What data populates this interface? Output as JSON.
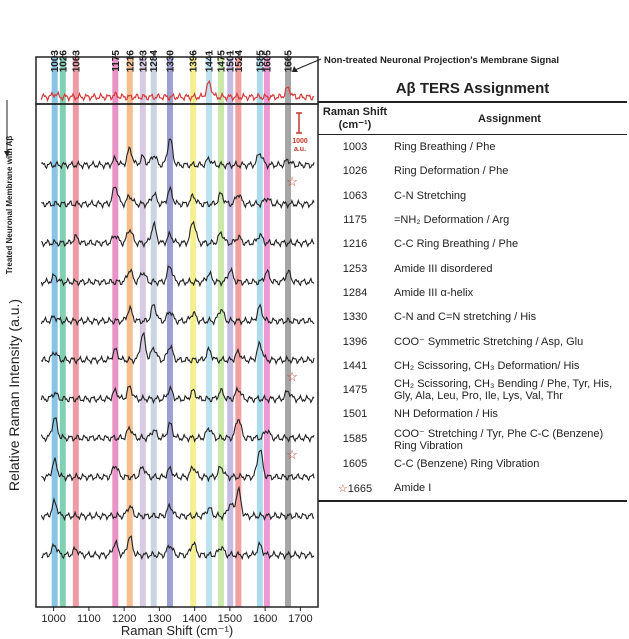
{
  "chart_data": {
    "type": "line",
    "xlabel": "Raman Shift (cm⁻¹)",
    "ylabel": "Relative Raman Intensity (a.u.)",
    "xlim": [
      950,
      1750
    ],
    "x_ticks": [
      "1000",
      "1100",
      "1200",
      "1300",
      "1400",
      "1500",
      "1600",
      "1700"
    ],
    "top_labels": [
      "1003",
      "1026",
      "1063",
      "1175",
      "1216",
      "1253",
      "1284",
      "1330",
      "1396",
      "1441",
      "1475",
      "1501",
      "1524",
      "1585",
      "1605",
      "1665"
    ],
    "bands": [
      {
        "x": 1003,
        "color": "#5fb0dd"
      },
      {
        "x": 1026,
        "color": "#58c09a"
      },
      {
        "x": 1063,
        "color": "#e97a88"
      },
      {
        "x": 1175,
        "color": "#e36fb3"
      },
      {
        "x": 1216,
        "color": "#f2a96a"
      },
      {
        "x": 1253,
        "color": "#c9b8d8"
      },
      {
        "x": 1284,
        "color": "#b7c7d8"
      },
      {
        "x": 1330,
        "color": "#7f7fc2"
      },
      {
        "x": 1396,
        "color": "#f3e96a"
      },
      {
        "x": 1441,
        "color": "#a7d8ea"
      },
      {
        "x": 1475,
        "color": "#b7e08c"
      },
      {
        "x": 1501,
        "color": "#b3a6d9"
      },
      {
        "x": 1524,
        "color": "#ef8080"
      },
      {
        "x": 1585,
        "color": "#8fd0e6"
      },
      {
        "x": 1605,
        "color": "#e877c5"
      },
      {
        "x": 1665,
        "color": "#888888"
      }
    ],
    "top_panel_label": "Non-treated Neuronal Projection's Membrane Signal",
    "side_label": "Treated Neuronal Membrane with Aβ",
    "scale_bar_label": "1000\na.u.",
    "series": [
      {
        "peaks": [
          [
            1003,
            3
          ],
          [
            1175,
            2
          ],
          [
            1441,
            14
          ],
          [
            1665,
            9
          ]
        ]
      },
      {
        "peaks": [
          [
            1175,
            6
          ],
          [
            1216,
            16
          ],
          [
            1253,
            8
          ],
          [
            1284,
            10
          ],
          [
            1330,
            26
          ],
          [
            1441,
            6
          ],
          [
            1585,
            12
          ],
          [
            1665,
            5
          ]
        ]
      },
      {
        "peaks": [
          [
            1175,
            18
          ],
          [
            1216,
            8
          ],
          [
            1284,
            10
          ],
          [
            1330,
            14
          ],
          [
            1396,
            8
          ],
          [
            1475,
            10
          ],
          [
            1524,
            10
          ],
          [
            1605,
            6
          ]
        ]
      },
      {
        "peaks": [
          [
            1063,
            6
          ],
          [
            1175,
            8
          ],
          [
            1216,
            14
          ],
          [
            1284,
            18
          ],
          [
            1330,
            8
          ],
          [
            1396,
            22
          ],
          [
            1475,
            10
          ],
          [
            1524,
            6
          ],
          [
            1585,
            8
          ]
        ]
      },
      {
        "peaks": [
          [
            1003,
            6
          ],
          [
            1216,
            12
          ],
          [
            1253,
            10
          ],
          [
            1330,
            16
          ],
          [
            1441,
            8
          ],
          [
            1501,
            12
          ],
          [
            1605,
            10
          ],
          [
            1665,
            10
          ]
        ]
      },
      {
        "peaks": [
          [
            1003,
            4
          ],
          [
            1216,
            12
          ],
          [
            1284,
            16
          ],
          [
            1330,
            10
          ],
          [
            1396,
            8
          ],
          [
            1475,
            12
          ],
          [
            1585,
            14
          ]
        ]
      },
      {
        "peaks": [
          [
            1003,
            8
          ],
          [
            1175,
            10
          ],
          [
            1253,
            26
          ],
          [
            1284,
            12
          ],
          [
            1330,
            14
          ],
          [
            1441,
            10
          ],
          [
            1524,
            8
          ],
          [
            1585,
            16
          ]
        ]
      },
      {
        "peaks": [
          [
            1003,
            6
          ],
          [
            1175,
            8
          ],
          [
            1216,
            12
          ],
          [
            1330,
            10
          ],
          [
            1396,
            8
          ],
          [
            1475,
            8
          ],
          [
            1524,
            10
          ],
          [
            1665,
            8
          ]
        ]
      },
      {
        "peaks": [
          [
            1003,
            20
          ],
          [
            1216,
            10
          ],
          [
            1284,
            8
          ],
          [
            1330,
            14
          ],
          [
            1441,
            10
          ],
          [
            1524,
            20
          ],
          [
            1605,
            8
          ]
        ]
      },
      {
        "peaks": [
          [
            1003,
            16
          ],
          [
            1175,
            12
          ],
          [
            1253,
            10
          ],
          [
            1330,
            8
          ],
          [
            1396,
            10
          ],
          [
            1475,
            10
          ],
          [
            1585,
            28
          ]
        ]
      },
      {
        "peaks": [
          [
            1003,
            14
          ],
          [
            1216,
            10
          ],
          [
            1330,
            10
          ],
          [
            1441,
            8
          ],
          [
            1501,
            12
          ],
          [
            1524,
            26
          ]
        ]
      },
      {
        "peaks": [
          [
            1003,
            10
          ],
          [
            1063,
            6
          ],
          [
            1175,
            12
          ],
          [
            1216,
            18
          ],
          [
            1330,
            10
          ],
          [
            1396,
            12
          ],
          [
            1475,
            8
          ],
          [
            1585,
            10
          ]
        ]
      }
    ],
    "stars_on_spectrum": [
      2,
      7,
      9
    ]
  },
  "table": {
    "title": "Aβ TERS Assignment",
    "col_shift_header": "Raman Shift (cm⁻¹)",
    "col_assign_header": "Assignment",
    "rows": [
      {
        "shift": "1003",
        "assign": "Ring Breathing / Phe"
      },
      {
        "shift": "1026",
        "assign": "Ring Deformation / Phe"
      },
      {
        "shift": "1063",
        "assign": "C-N Stretching"
      },
      {
        "shift": "1175",
        "assign": "=NH₂ Deformation / Arg"
      },
      {
        "shift": "1216",
        "assign": "C-C Ring Breathing / Phe"
      },
      {
        "shift": "1253",
        "assign": "Amide III disordered"
      },
      {
        "shift": "1284",
        "assign": "Amide III α-helix"
      },
      {
        "shift": "1330",
        "assign": "C-N and C=N stretching / His"
      },
      {
        "shift": "1396",
        "assign": "COO⁻ Symmetric Stretching / Asp, Glu"
      },
      {
        "shift": "1441",
        "assign": "CH₂ Scissoring, CH₃ Deformation/ His"
      },
      {
        "shift": "1475",
        "assign": "CH₂ Scissoring, CH₃ Bending / Phe, Tyr, His, Gly, Ala, Leu, Pro, Ile, Lys, Val, Thr"
      },
      {
        "shift": "1501",
        "assign": "NH Deformation / His"
      },
      {
        "shift": "1585",
        "assign": "COO⁻ Stretching / Tyr, Phe C-C (Benzene) Ring Vibration"
      },
      {
        "shift": "1605",
        "assign": "C-C (Benzene) Ring Vibration"
      },
      {
        "shift": "1665",
        "assign": "Amide I",
        "star": true
      }
    ]
  }
}
